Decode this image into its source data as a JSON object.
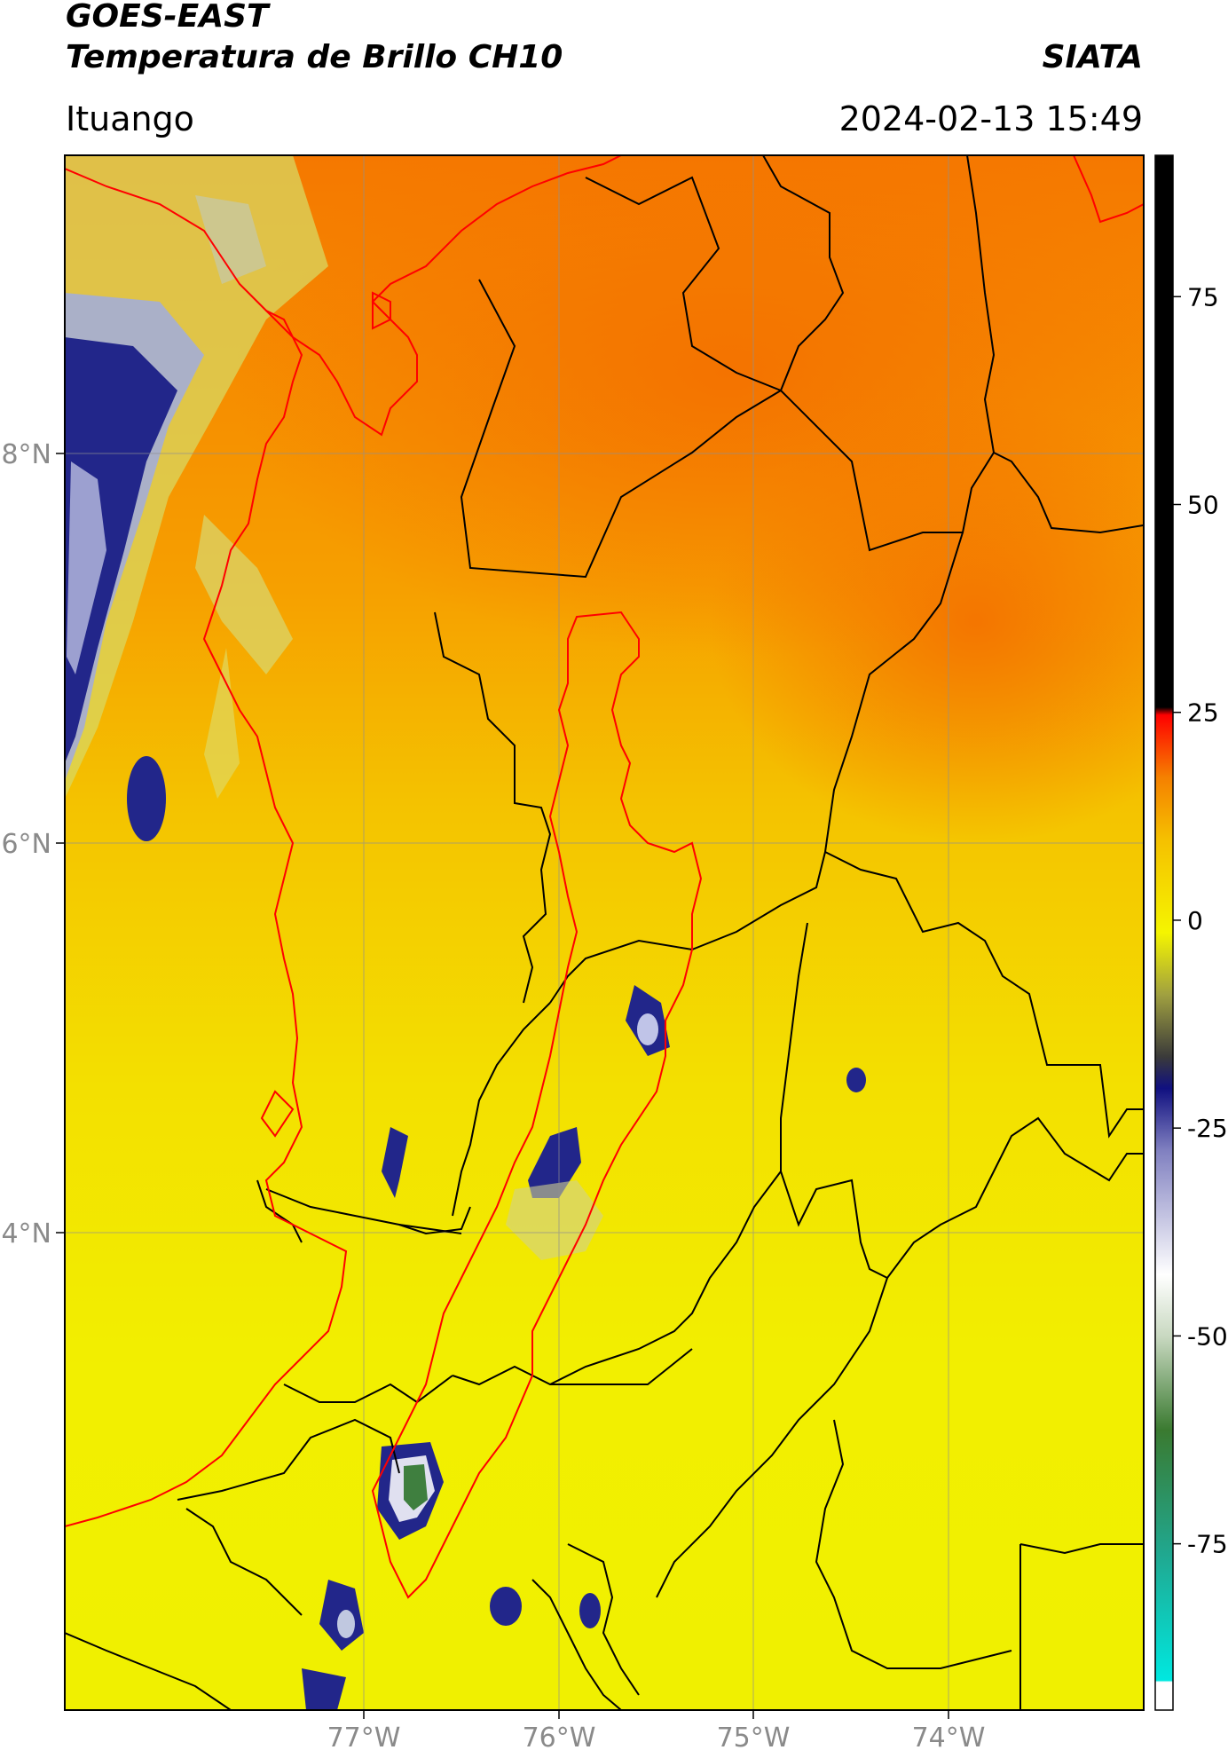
{
  "header": {
    "satellite": "GOES-EAST",
    "product": "Temperatura de Brillo CH10",
    "agency": "SIATA",
    "region": "Ituango",
    "datetime": "2024-02-13 15:49"
  },
  "axes": {
    "lon_ticks": [
      "77°W",
      "76°W",
      "75°W",
      "74°W"
    ],
    "lat_ticks": [
      "8°N",
      "6°N",
      "4°N"
    ]
  },
  "colorbar": {
    "ticks": [
      "75",
      "50",
      "25",
      "0",
      "-25",
      "-50",
      "-75"
    ],
    "range": [
      -95,
      92
    ]
  },
  "colors": {
    "warm_orange": "#f57a00",
    "yellow": "#f2f200",
    "cold_blue": "#1a1a80",
    "red_outline": "#ff0000",
    "boundary_black": "#000000"
  }
}
